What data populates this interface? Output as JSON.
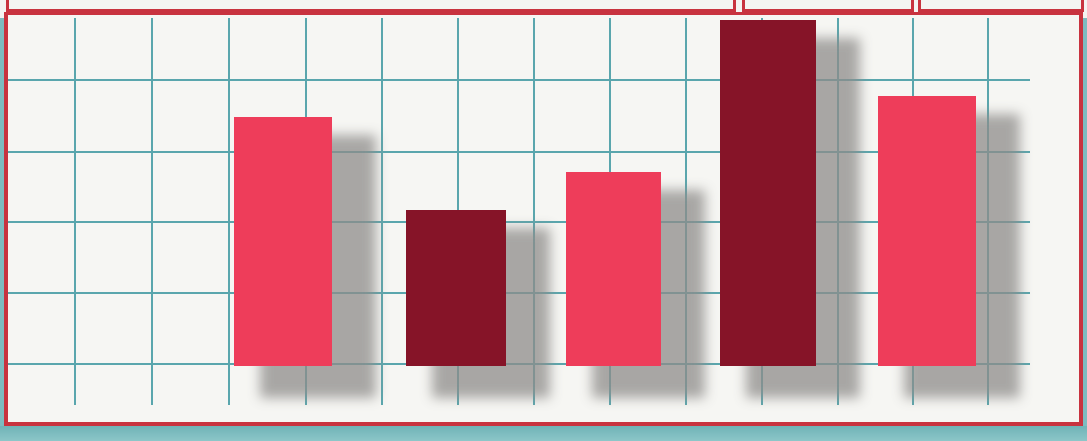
{
  "colors": {
    "frame_red": "#c8333f",
    "paper": "#f6f6f3",
    "grid_line": "#5aa6ad",
    "bar_light": "#ee3d5a",
    "bar_dark": "#861428",
    "shadow": "#8e8c8a",
    "bottom_band": "#7dbcc0"
  },
  "chart_data": {
    "type": "bar",
    "categories": [
      "",
      "",
      "",
      "",
      ""
    ],
    "values": [
      0.72,
      0.45,
      0.56,
      1.0,
      0.78
    ],
    "bar_colors": [
      "light",
      "dark",
      "light",
      "dark",
      "light"
    ],
    "grid": true
  }
}
